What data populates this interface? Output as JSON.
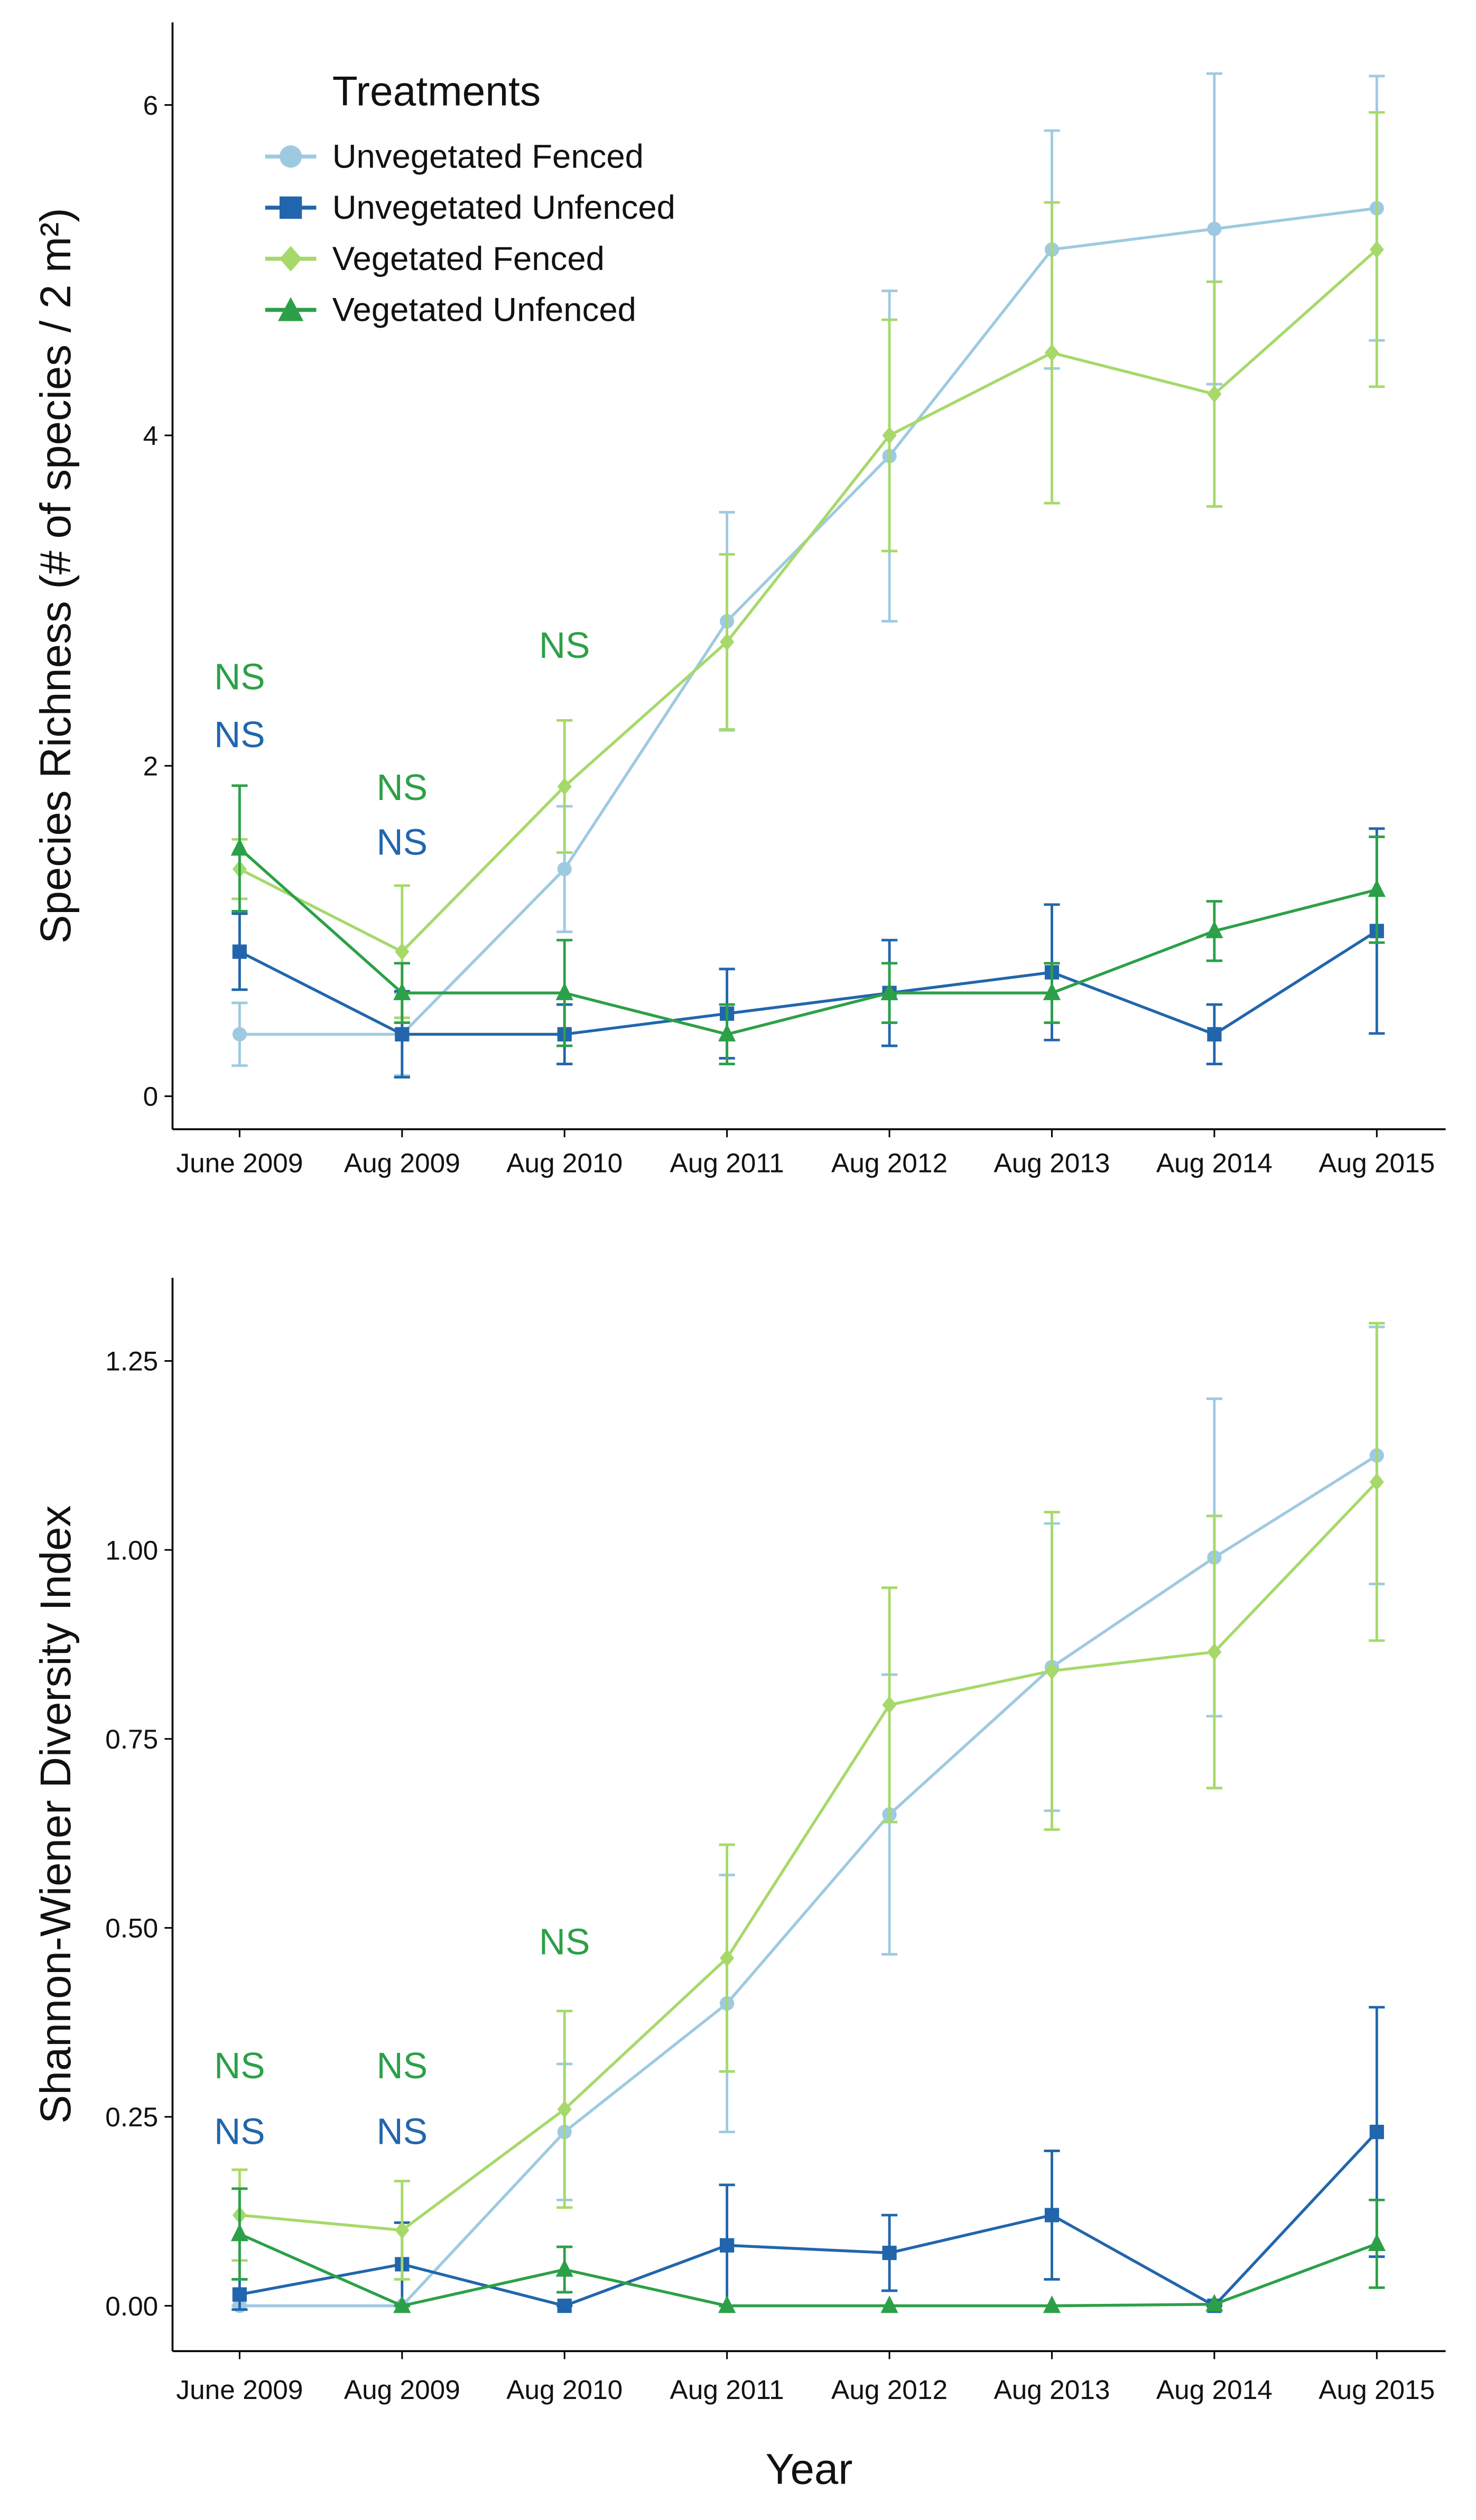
{
  "chart_data": [
    {
      "type": "line",
      "ylabel": "Species Richness (# of species / 2 m²)",
      "categories": [
        "June 2009",
        "Aug 2009",
        "Aug 2010",
        "Aug 2011",
        "Aug 2012",
        "Aug 2013",
        "Aug 2014",
        "Aug 2015"
      ],
      "ylim": [
        -0.2,
        6.5
      ],
      "yticks": [
        0,
        2,
        4,
        6
      ],
      "legend": "top-left",
      "legend_title": "Treatments",
      "series": [
        {
          "name": "Unvegetated Fenced",
          "color": "#9ecae1",
          "marker": "circle",
          "values": [
            0.375,
            0.375,
            1.375,
            2.875,
            3.875,
            5.125,
            5.25,
            5.375
          ],
          "errors": [
            0.19,
            0.25,
            0.38,
            0.66,
            1.0,
            0.72,
            0.94,
            0.8
          ]
        },
        {
          "name": "Unvegetated Unfenced",
          "color": "#2166ac",
          "marker": "square",
          "values": [
            0.875,
            0.375,
            0.375,
            0.5,
            0.625,
            0.75,
            0.375,
            1.0
          ],
          "errors": [
            0.23,
            0.26,
            0.18,
            0.27,
            0.32,
            0.41,
            0.18,
            0.62
          ]
        },
        {
          "name": "Vegetated Fenced",
          "color": "#a6d96a",
          "marker": "diamond",
          "values": [
            1.375,
            0.875,
            1.875,
            2.75,
            4.0,
            4.5,
            4.25,
            5.125
          ],
          "errors": [
            0.18,
            0.4,
            0.4,
            0.53,
            0.7,
            0.91,
            0.68,
            0.83
          ]
        },
        {
          "name": "Vegetated Unfenced",
          "color": "#2ca048",
          "marker": "triangle",
          "values": [
            1.5,
            0.625,
            0.625,
            0.375,
            0.625,
            0.625,
            1.0,
            1.25
          ],
          "errors": [
            0.38,
            0.18,
            0.32,
            0.18,
            0.18,
            0.18,
            0.18,
            0.32
          ]
        }
      ],
      "annotations": [
        {
          "text": "NS",
          "x": 0,
          "y": 2.54,
          "color": "#2ca048"
        },
        {
          "text": "NS",
          "x": 0,
          "y": 2.19,
          "color": "#2166ac"
        },
        {
          "text": "NS",
          "x": 1,
          "y": 1.87,
          "color": "#2ca048"
        },
        {
          "text": "NS",
          "x": 1,
          "y": 1.54,
          "color": "#2166ac"
        },
        {
          "text": "NS",
          "x": 2,
          "y": 2.73,
          "color": "#2ca048"
        }
      ]
    },
    {
      "type": "line",
      "ylabel": "Shannon-Wiener Diversity Index",
      "xlabel": "Year",
      "categories": [
        "June 2009",
        "Aug 2009",
        "Aug 2010",
        "Aug 2011",
        "Aug 2012",
        "Aug 2013",
        "Aug 2014",
        "Aug 2015"
      ],
      "ylim": [
        -0.06,
        1.36
      ],
      "yticks": [
        {
          "value": 0,
          "label": "0.00"
        },
        {
          "value": 0.25,
          "label": "0.25"
        },
        {
          "value": 0.5,
          "label": "0.50"
        },
        {
          "value": 0.75,
          "label": "0.75"
        },
        {
          "value": 1,
          "label": "1.00"
        },
        {
          "value": 1.25,
          "label": "1.25"
        }
      ],
      "series": [
        {
          "name": "Unvegetated Fenced",
          "color": "#9ecae1",
          "marker": "circle",
          "values": [
            0,
            0,
            0.23,
            0.4,
            0.65,
            0.845,
            0.99,
            1.125
          ],
          "errors": [
            0,
            0,
            0.09,
            0.17,
            0.185,
            0.19,
            0.21,
            0.17
          ]
        },
        {
          "name": "Unvegetated Unfenced",
          "color": "#2166ac",
          "marker": "square",
          "values": [
            0.015,
            0.055,
            0,
            0.08,
            0.07,
            0.12,
            0,
            0.23
          ],
          "errors": [
            0.02,
            0.055,
            0,
            0.08,
            0.05,
            0.085,
            0,
            0.165
          ]
        },
        {
          "name": "Vegetated Fenced",
          "color": "#a6d96a",
          "marker": "diamond",
          "values": [
            0.12,
            0.1,
            0.26,
            0.46,
            0.795,
            0.84,
            0.865,
            1.09
          ],
          "errors": [
            0.06,
            0.065,
            0.13,
            0.15,
            0.155,
            0.21,
            0.18,
            0.21
          ]
        },
        {
          "name": "Vegetated Unfenced",
          "color": "#2ca048",
          "marker": "triangle",
          "values": [
            0.095,
            0,
            0.048,
            0,
            0,
            0,
            0.002,
            0.082
          ],
          "errors": [
            0.06,
            0,
            0.03,
            0,
            0,
            0,
            0,
            0.058
          ]
        }
      ],
      "annotations": [
        {
          "text": "NS",
          "x": 0,
          "y": 0.318,
          "color": "#2ca048"
        },
        {
          "text": "NS",
          "x": 0,
          "y": 0.231,
          "color": "#2166ac"
        },
        {
          "text": "NS",
          "x": 1,
          "y": 0.318,
          "color": "#2ca048"
        },
        {
          "text": "NS",
          "x": 1,
          "y": 0.231,
          "color": "#2166ac"
        },
        {
          "text": "NS",
          "x": 2,
          "y": 0.482,
          "color": "#2ca048"
        }
      ]
    }
  ]
}
